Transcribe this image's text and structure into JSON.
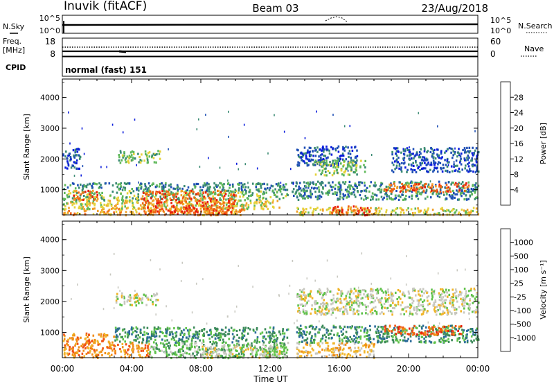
{
  "header": {
    "station": "Inuvik (fitACF)",
    "beam": "Beam 03",
    "date": "23/Aug/2018"
  },
  "top_panel": {
    "left_label": "N.Sky",
    "left_ticks": [
      "10^5",
      "10^0"
    ],
    "right_ticks": [
      "10^5",
      "10^0"
    ],
    "right_label": "N.Search"
  },
  "freq_panel": {
    "left_label_1": "Freq.",
    "left_label_2": "[MHz]",
    "left_ticks": [
      "18",
      "8"
    ],
    "right_ticks": [
      "60",
      "0"
    ],
    "right_label": "Nave"
  },
  "cpid": {
    "label": "CPID",
    "value": "normal (fast) 151"
  },
  "x_axis": {
    "ticks": [
      "00:00",
      "04:00",
      "08:00",
      "12:00",
      "16:00",
      "20:00",
      "00:00"
    ],
    "label": "Time UT"
  },
  "chart_data": [
    {
      "type": "heatmap",
      "quantity": "Power",
      "ylabel": "Slant Range [km]",
      "ylim": [
        180,
        4600
      ],
      "xlim": [
        0,
        24
      ],
      "yticks": [
        "1000",
        "2000",
        "3000",
        "4000"
      ],
      "colorbar": {
        "label": "Power [dB]",
        "ticks": [
          "4",
          "8",
          "12",
          "16",
          "20",
          "24",
          "28"
        ],
        "colors": [
          "#0a1cdc",
          "#1f4fb5",
          "#3a8a73",
          "#5fb85a",
          "#e6d23a",
          "#f0a028",
          "#f06414",
          "#e81c0c"
        ]
      },
      "bands": [
        {
          "t0": 0.0,
          "t1": 10.5,
          "r0": 200,
          "r1": 450,
          "level": 5
        },
        {
          "t0": 0.0,
          "t1": 12.5,
          "r0": 400,
          "r1": 700,
          "level": 4
        },
        {
          "t0": 0.0,
          "t1": 13.0,
          "r0": 700,
          "r1": 1000,
          "level": 3
        },
        {
          "t0": 0.0,
          "t1": 13.0,
          "r0": 1000,
          "r1": 1250,
          "level": 2
        },
        {
          "t0": 4.5,
          "t1": 10.0,
          "r0": 200,
          "r1": 1000,
          "level": 6
        },
        {
          "t0": 0.6,
          "t1": 2.0,
          "r0": 700,
          "r1": 1000,
          "level": 6
        },
        {
          "t0": 0.0,
          "t1": 1.0,
          "r0": 1700,
          "r1": 2400,
          "level": 1
        },
        {
          "t0": 3.2,
          "t1": 5.6,
          "r0": 1900,
          "r1": 2300,
          "level": 3
        },
        {
          "t0": 13.5,
          "t1": 24.0,
          "r0": 200,
          "r1": 450,
          "level": 4
        },
        {
          "t0": 15.5,
          "t1": 17.8,
          "r0": 200,
          "r1": 500,
          "level": 6
        },
        {
          "t0": 13.2,
          "t1": 24.0,
          "r0": 700,
          "r1": 1300,
          "level": 2
        },
        {
          "t0": 18.5,
          "t1": 23.5,
          "r0": 950,
          "r1": 1250,
          "level": 6
        },
        {
          "t0": 13.5,
          "t1": 17.0,
          "r0": 1800,
          "r1": 2450,
          "level": 1
        },
        {
          "t0": 14.5,
          "t1": 17.5,
          "r0": 1500,
          "r1": 2000,
          "level": 3
        },
        {
          "t0": 19.0,
          "t1": 24.0,
          "r0": 1600,
          "r1": 2400,
          "level": 1
        }
      ]
    },
    {
      "type": "heatmap",
      "quantity": "Velocity",
      "ylabel": "Slant Range [km]",
      "ylim": [
        180,
        4600
      ],
      "xlim": [
        0,
        24
      ],
      "yticks": [
        "1000",
        "2000",
        "3000",
        "4000"
      ],
      "colorbar": {
        "label": "Velocity [m s⁻¹]",
        "ticks": [
          "1000",
          "500",
          "100",
          "25",
          "-25",
          "-100",
          "-500",
          "-1000"
        ],
        "colors": [
          "#1e3cb4",
          "#2a6b9a",
          "#3c8a5a",
          "#5fc24a",
          "#c8c8c0",
          "#f0b428",
          "#f08c14",
          "#f05014",
          "#e81c0c"
        ]
      },
      "bands": [
        {
          "t0": 0.0,
          "t1": 5.0,
          "r0": 200,
          "r1": 700,
          "level": 6
        },
        {
          "t0": 0.0,
          "t1": 3.0,
          "r0": 700,
          "r1": 1000,
          "level": 6
        },
        {
          "t0": 3.0,
          "t1": 13.0,
          "r0": 700,
          "r1": 1200,
          "level": 2
        },
        {
          "t0": 5.0,
          "t1": 13.0,
          "r0": 200,
          "r1": 700,
          "level": 3
        },
        {
          "t0": 8.0,
          "t1": 13.0,
          "r0": 200,
          "r1": 600,
          "level": 4
        },
        {
          "t0": 3.0,
          "t1": 5.5,
          "r0": 1900,
          "r1": 2300,
          "level": 4
        },
        {
          "t0": 13.5,
          "t1": 18.0,
          "r0": 200,
          "r1": 700,
          "level": 5
        },
        {
          "t0": 13.5,
          "t1": 24.0,
          "r0": 700,
          "r1": 1250,
          "level": 2
        },
        {
          "t0": 18.5,
          "t1": 23.0,
          "r0": 950,
          "r1": 1250,
          "level": 7
        },
        {
          "t0": 13.5,
          "t1": 24.0,
          "r0": 1600,
          "r1": 2450,
          "level": 4
        }
      ]
    }
  ]
}
